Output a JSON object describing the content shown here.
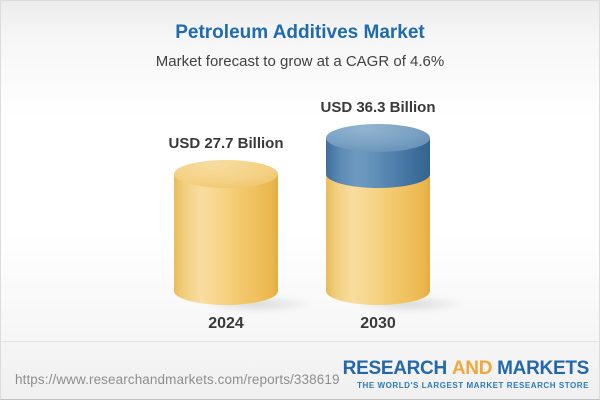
{
  "header": {
    "title": "Petroleum Additives Market",
    "subtitle": "Market forecast to grow at a CAGR of 4.6%"
  },
  "chart_data": {
    "type": "bar",
    "variant": "3d-cylinder",
    "title": "Petroleum Additives Market",
    "subtitle": "Market forecast to grow at a CAGR of 4.6%",
    "unit": "USD Billion",
    "cagr_percent": 4.6,
    "categories": [
      "2024",
      "2030"
    ],
    "totals": [
      27.7,
      36.3
    ],
    "value_labels": [
      "USD 27.7 Billion",
      "USD 36.3 Billion"
    ],
    "series": [
      {
        "name": "base",
        "values": [
          27.7,
          27.7
        ],
        "color": "#F2C767"
      },
      {
        "name": "growth",
        "values": [
          0,
          8.6
        ],
        "color": "#4E80AC"
      }
    ],
    "legend": "none",
    "gridlines": false,
    "axes_shown": false
  },
  "footer": {
    "url": "https://www.researchandmarkets.com/reports/338619",
    "logo": {
      "word1": "RESEARCH",
      "word2": "AND",
      "word3": "MARKETS",
      "tagline": "THE WORLD'S LARGEST MARKET RESEARCH STORE",
      "blue": "#2368A9",
      "orange": "#F0A73C"
    }
  }
}
